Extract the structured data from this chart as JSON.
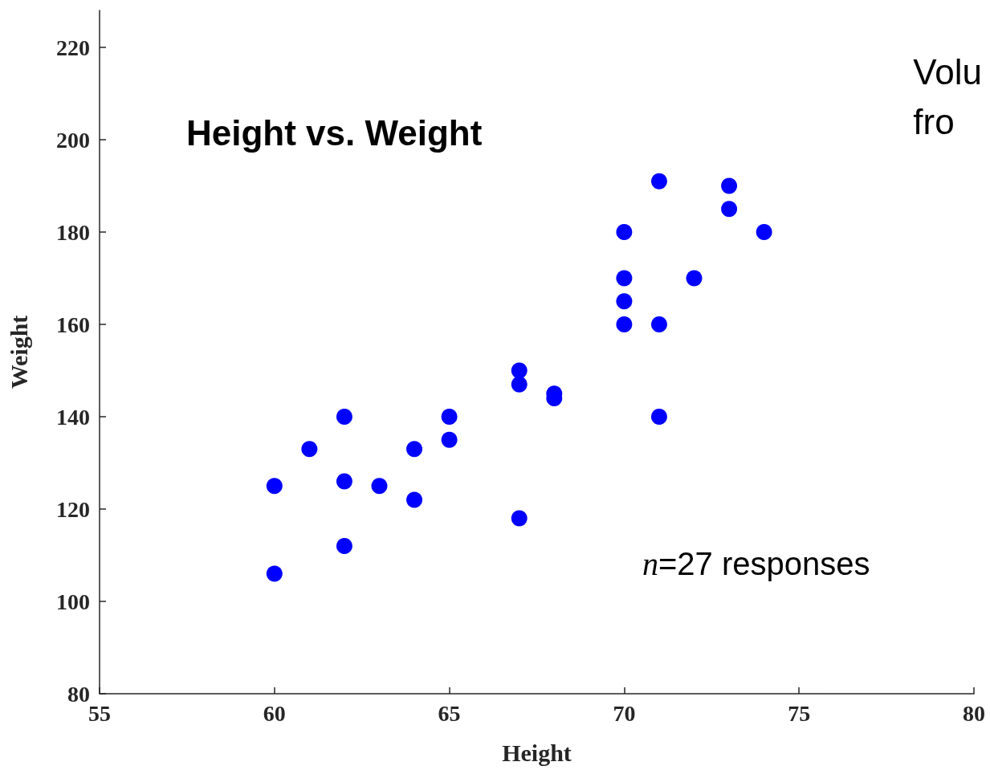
{
  "chart_data": {
    "type": "scatter",
    "title": "Height vs. Weight",
    "xlabel": "Height",
    "ylabel": "Weight",
    "annotations": [
      "n=27 responses",
      "Volu\nfro"
    ],
    "x": [
      60,
      60,
      61,
      62,
      62,
      62,
      63,
      64,
      64,
      65,
      65,
      67,
      67,
      67,
      68,
      68,
      70,
      70,
      70,
      70,
      71,
      71,
      71,
      72,
      73,
      73,
      74
    ],
    "series": [
      {
        "color": "#0000ff",
        "values": [
          125,
          106,
          133,
          140,
          126,
          112,
          125,
          133,
          122,
          140,
          135,
          150,
          147,
          118,
          145,
          144,
          180,
          170,
          165,
          160,
          191,
          160,
          140,
          170,
          190,
          185,
          180
        ]
      }
    ],
    "xlim": [
      55,
      80
    ],
    "xticks": [
      55,
      60,
      65,
      70,
      75,
      80
    ],
    "ylim": [
      80,
      228
    ],
    "yticks": [
      80,
      100,
      120,
      140,
      160,
      180,
      200,
      220
    ],
    "grid": false,
    "marker": "circle"
  }
}
